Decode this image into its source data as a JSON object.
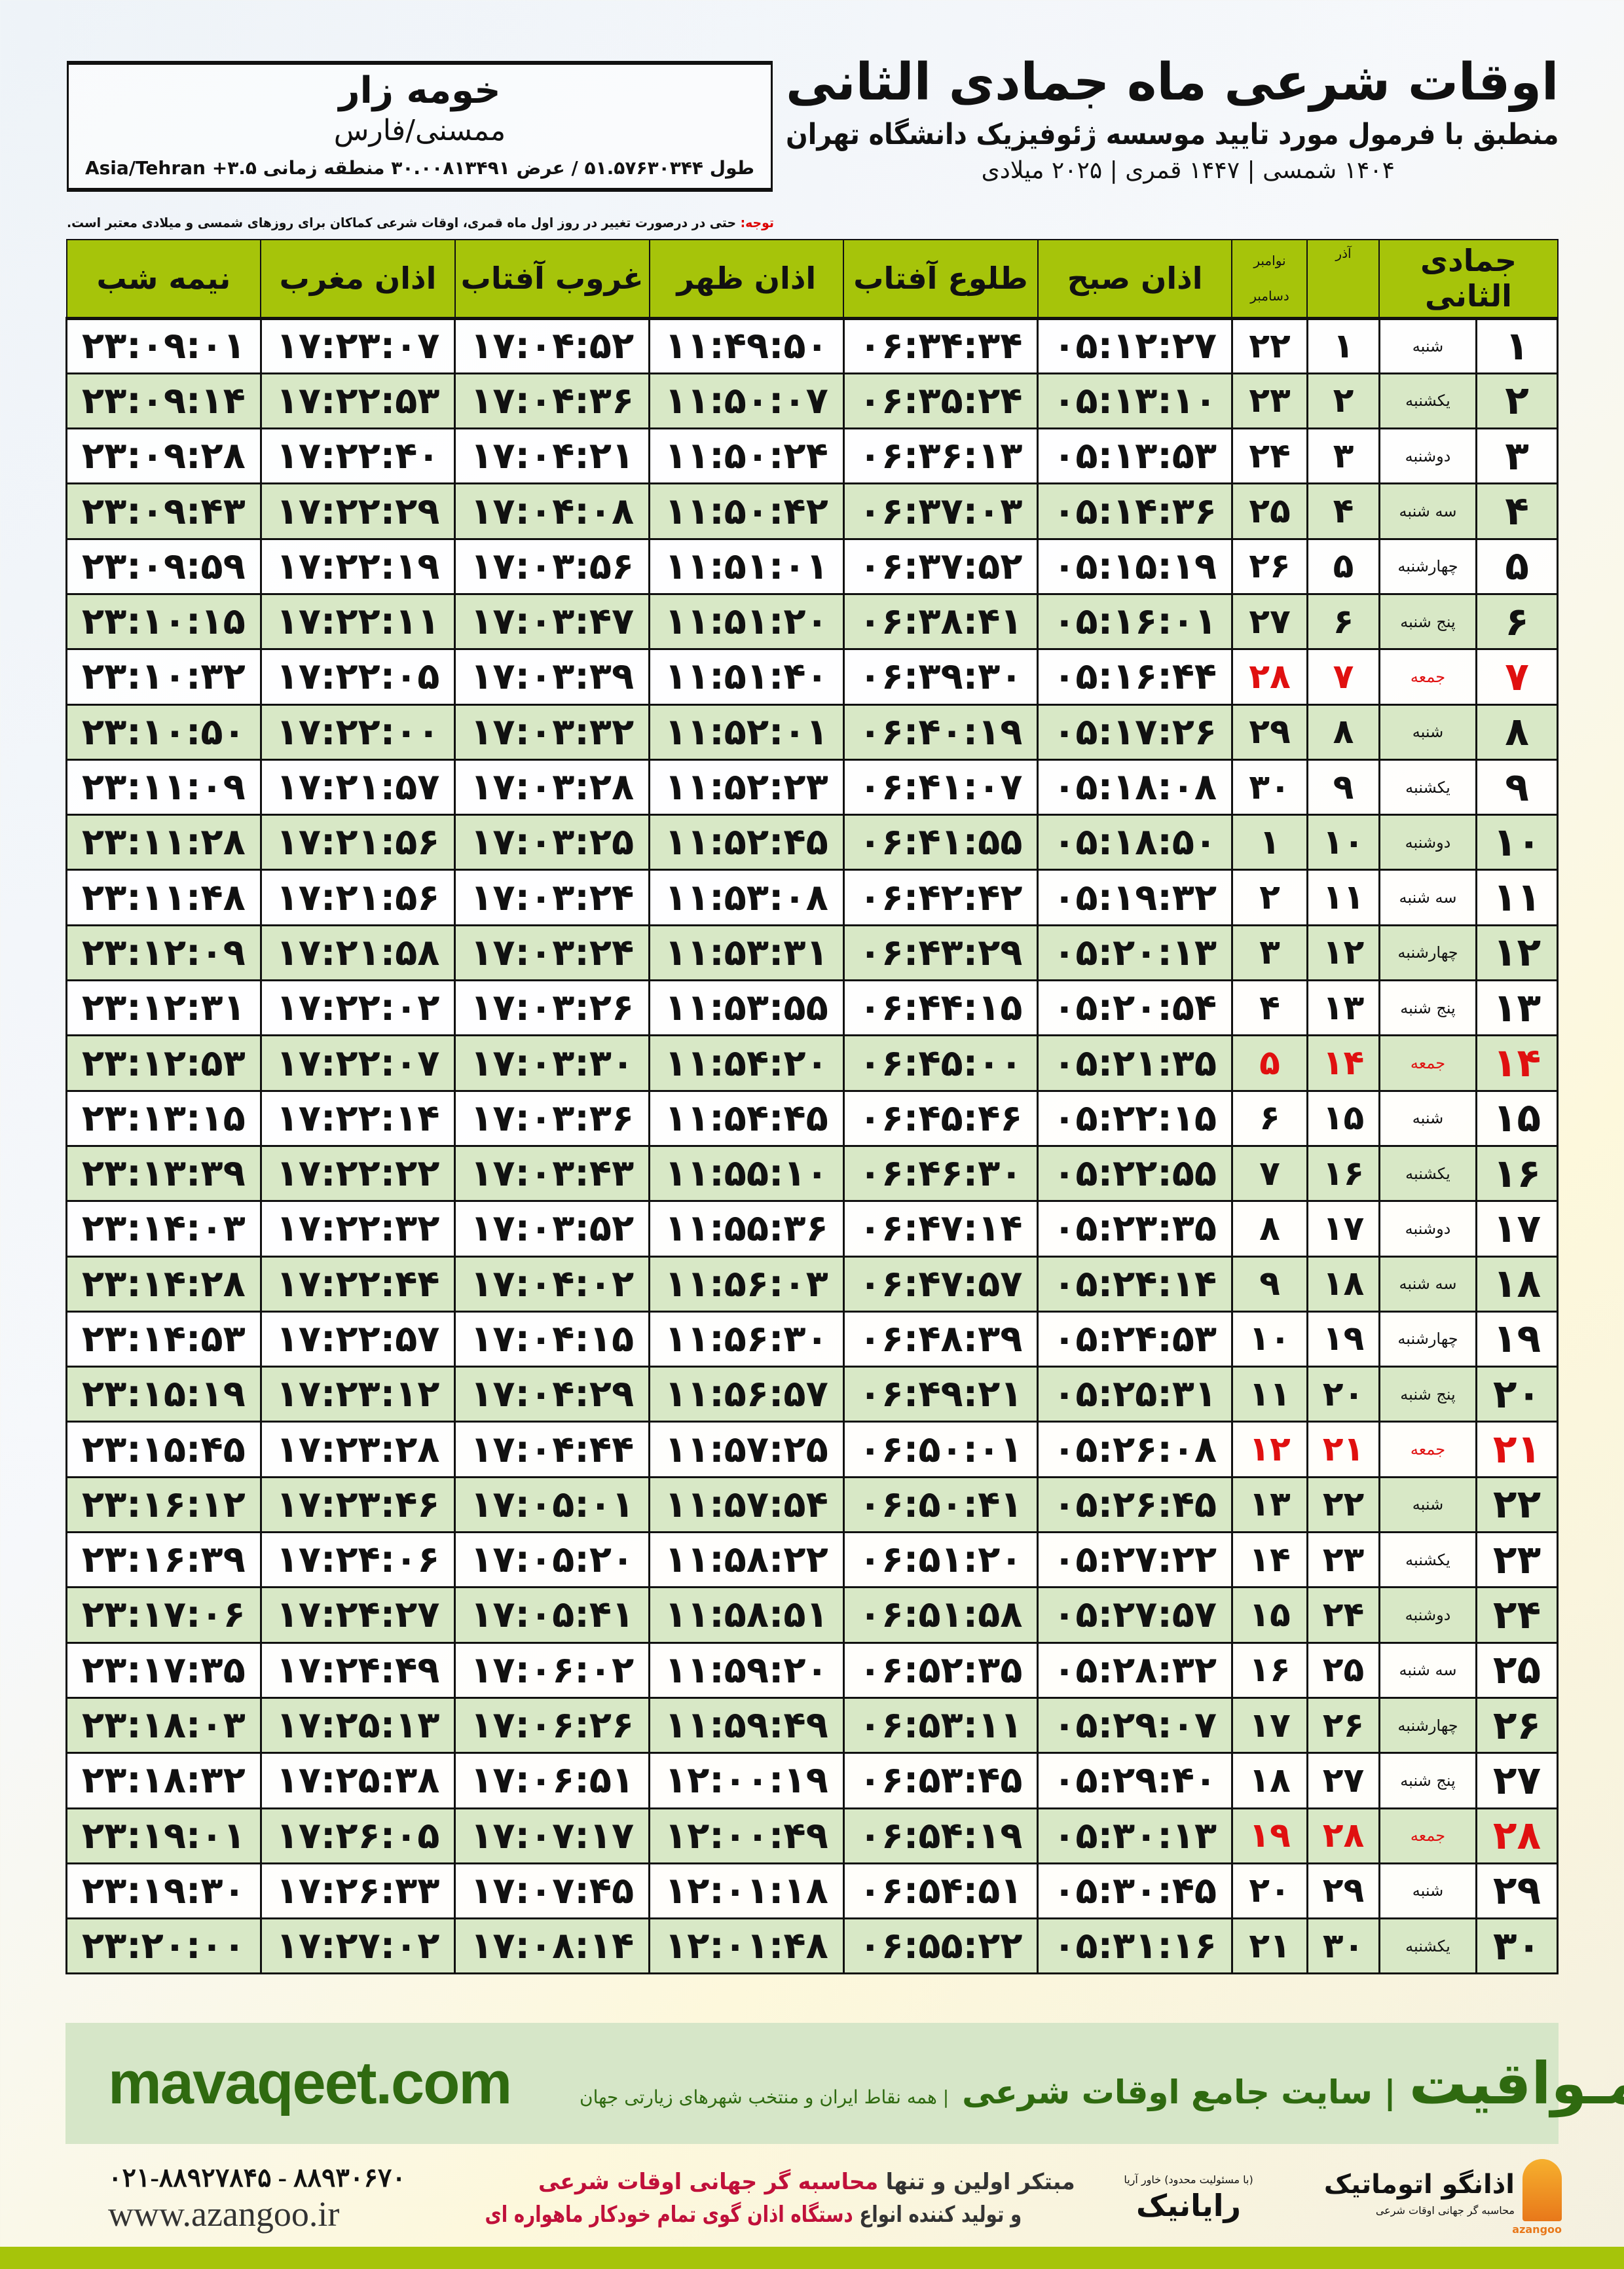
{
  "header": {
    "title": "اوقات شرعی ماه جمادی الثانی",
    "subtitle": "منطبق با فرمول مورد تایید موسسه ژئوفیزیک دانشگاه تهران",
    "dateline": "۱۴۰۴ شمسی | ۱۴۴۷ قمری | ۲۰۲۵ میلادی"
  },
  "location": {
    "city": "خومه زار",
    "province": "ممسنی/فارس",
    "coords": "طول ۵۱.۵۷۶۳۰۳۴۴ / عرض ۳۰.۰۰۸۱۳۴۹۱ منطقه زمانی ۳.۵+ Asia/Tehran"
  },
  "note": {
    "label": "توجه:",
    "text": " حتی در درصورت تغییر در روز اول ماه قمری، اوقات شرعی کماکان برای روزهای شمسی و میلادی معتبر است."
  },
  "table": {
    "headers": {
      "hijri": "جمادی الثانی",
      "azar": "آذر",
      "gregorian_top": "نوامبر",
      "gregorian_bottom": "دسامبر",
      "fajr": "اذان صبح",
      "sunrise": "طلوع آفتاب",
      "dhuhr": "اذان ظهر",
      "sunset": "غروب آفتاب",
      "maghrib": "اذان مغرب",
      "midnight": "نیمه شب"
    },
    "highlight_color": "#e01010",
    "header_color": "#a6c40a",
    "rows": [
      {
        "day": "۱",
        "weekday": "شنبه",
        "azar": "۱",
        "greg": "۲۲",
        "fajr": "۰۵:۱۲:۲۷",
        "sunrise": "۰۶:۳۴:۳۴",
        "dhuhr": "۱۱:۴۹:۵۰",
        "sunset": "۱۷:۰۴:۵۲",
        "maghrib": "۱۷:۲۳:۰۷",
        "midnight": "۲۳:۰۹:۰۱",
        "friday": false
      },
      {
        "day": "۲",
        "weekday": "یکشنبه",
        "azar": "۲",
        "greg": "۲۳",
        "fajr": "۰۵:۱۳:۱۰",
        "sunrise": "۰۶:۳۵:۲۴",
        "dhuhr": "۱۱:۵۰:۰۷",
        "sunset": "۱۷:۰۴:۳۶",
        "maghrib": "۱۷:۲۲:۵۳",
        "midnight": "۲۳:۰۹:۱۴",
        "friday": false
      },
      {
        "day": "۳",
        "weekday": "دوشنبه",
        "azar": "۳",
        "greg": "۲۴",
        "fajr": "۰۵:۱۳:۵۳",
        "sunrise": "۰۶:۳۶:۱۳",
        "dhuhr": "۱۱:۵۰:۲۴",
        "sunset": "۱۷:۰۴:۲۱",
        "maghrib": "۱۷:۲۲:۴۰",
        "midnight": "۲۳:۰۹:۲۸",
        "friday": false
      },
      {
        "day": "۴",
        "weekday": "سه شنبه",
        "azar": "۴",
        "greg": "۲۵",
        "fajr": "۰۵:۱۴:۳۶",
        "sunrise": "۰۶:۳۷:۰۳",
        "dhuhr": "۱۱:۵۰:۴۲",
        "sunset": "۱۷:۰۴:۰۸",
        "maghrib": "۱۷:۲۲:۲۹",
        "midnight": "۲۳:۰۹:۴۳",
        "friday": false
      },
      {
        "day": "۵",
        "weekday": "چهارشنبه",
        "azar": "۵",
        "greg": "۲۶",
        "fajr": "۰۵:۱۵:۱۹",
        "sunrise": "۰۶:۳۷:۵۲",
        "dhuhr": "۱۱:۵۱:۰۱",
        "sunset": "۱۷:۰۳:۵۶",
        "maghrib": "۱۷:۲۲:۱۹",
        "midnight": "۲۳:۰۹:۵۹",
        "friday": false
      },
      {
        "day": "۶",
        "weekday": "پنج شنبه",
        "azar": "۶",
        "greg": "۲۷",
        "fajr": "۰۵:۱۶:۰۱",
        "sunrise": "۰۶:۳۸:۴۱",
        "dhuhr": "۱۱:۵۱:۲۰",
        "sunset": "۱۷:۰۳:۴۷",
        "maghrib": "۱۷:۲۲:۱۱",
        "midnight": "۲۳:۱۰:۱۵",
        "friday": false
      },
      {
        "day": "۷",
        "weekday": "جمعه",
        "azar": "۷",
        "greg": "۲۸",
        "fajr": "۰۵:۱۶:۴۴",
        "sunrise": "۰۶:۳۹:۳۰",
        "dhuhr": "۱۱:۵۱:۴۰",
        "sunset": "۱۷:۰۳:۳۹",
        "maghrib": "۱۷:۲۲:۰۵",
        "midnight": "۲۳:۱۰:۳۲",
        "friday": true
      },
      {
        "day": "۸",
        "weekday": "شنبه",
        "azar": "۸",
        "greg": "۲۹",
        "fajr": "۰۵:۱۷:۲۶",
        "sunrise": "۰۶:۴۰:۱۹",
        "dhuhr": "۱۱:۵۲:۰۱",
        "sunset": "۱۷:۰۳:۳۲",
        "maghrib": "۱۷:۲۲:۰۰",
        "midnight": "۲۳:۱۰:۵۰",
        "friday": false
      },
      {
        "day": "۹",
        "weekday": "یکشنبه",
        "azar": "۹",
        "greg": "۳۰",
        "fajr": "۰۵:۱۸:۰۸",
        "sunrise": "۰۶:۴۱:۰۷",
        "dhuhr": "۱۱:۵۲:۲۳",
        "sunset": "۱۷:۰۳:۲۸",
        "maghrib": "۱۷:۲۱:۵۷",
        "midnight": "۲۳:۱۱:۰۹",
        "friday": false
      },
      {
        "day": "۱۰",
        "weekday": "دوشنبه",
        "azar": "۱۰",
        "greg": "۱",
        "fajr": "۰۵:۱۸:۵۰",
        "sunrise": "۰۶:۴۱:۵۵",
        "dhuhr": "۱۱:۵۲:۴۵",
        "sunset": "۱۷:۰۳:۲۵",
        "maghrib": "۱۷:۲۱:۵۶",
        "midnight": "۲۳:۱۱:۲۸",
        "friday": false
      },
      {
        "day": "۱۱",
        "weekday": "سه شنبه",
        "azar": "۱۱",
        "greg": "۲",
        "fajr": "۰۵:۱۹:۳۲",
        "sunrise": "۰۶:۴۲:۴۲",
        "dhuhr": "۱۱:۵۳:۰۸",
        "sunset": "۱۷:۰۳:۲۴",
        "maghrib": "۱۷:۲۱:۵۶",
        "midnight": "۲۳:۱۱:۴۸",
        "friday": false
      },
      {
        "day": "۱۲",
        "weekday": "چهارشنبه",
        "azar": "۱۲",
        "greg": "۳",
        "fajr": "۰۵:۲۰:۱۳",
        "sunrise": "۰۶:۴۳:۲۹",
        "dhuhr": "۱۱:۵۳:۳۱",
        "sunset": "۱۷:۰۳:۲۴",
        "maghrib": "۱۷:۲۱:۵۸",
        "midnight": "۲۳:۱۲:۰۹",
        "friday": false
      },
      {
        "day": "۱۳",
        "weekday": "پنج شنبه",
        "azar": "۱۳",
        "greg": "۴",
        "fajr": "۰۵:۲۰:۵۴",
        "sunrise": "۰۶:۴۴:۱۵",
        "dhuhr": "۱۱:۵۳:۵۵",
        "sunset": "۱۷:۰۳:۲۶",
        "maghrib": "۱۷:۲۲:۰۲",
        "midnight": "۲۳:۱۲:۳۱",
        "friday": false
      },
      {
        "day": "۱۴",
        "weekday": "جمعه",
        "azar": "۱۴",
        "greg": "۵",
        "fajr": "۰۵:۲۱:۳۵",
        "sunrise": "۰۶:۴۵:۰۰",
        "dhuhr": "۱۱:۵۴:۲۰",
        "sunset": "۱۷:۰۳:۳۰",
        "maghrib": "۱۷:۲۲:۰۷",
        "midnight": "۲۳:۱۲:۵۳",
        "friday": true
      },
      {
        "day": "۱۵",
        "weekday": "شنبه",
        "azar": "۱۵",
        "greg": "۶",
        "fajr": "۰۵:۲۲:۱۵",
        "sunrise": "۰۶:۴۵:۴۶",
        "dhuhr": "۱۱:۵۴:۴۵",
        "sunset": "۱۷:۰۳:۳۶",
        "maghrib": "۱۷:۲۲:۱۴",
        "midnight": "۲۳:۱۳:۱۵",
        "friday": false
      },
      {
        "day": "۱۶",
        "weekday": "یکشنبه",
        "azar": "۱۶",
        "greg": "۷",
        "fajr": "۰۵:۲۲:۵۵",
        "sunrise": "۰۶:۴۶:۳۰",
        "dhuhr": "۱۱:۵۵:۱۰",
        "sunset": "۱۷:۰۳:۴۳",
        "maghrib": "۱۷:۲۲:۲۲",
        "midnight": "۲۳:۱۳:۳۹",
        "friday": false
      },
      {
        "day": "۱۷",
        "weekday": "دوشنبه",
        "azar": "۱۷",
        "greg": "۸",
        "fajr": "۰۵:۲۳:۳۵",
        "sunrise": "۰۶:۴۷:۱۴",
        "dhuhr": "۱۱:۵۵:۳۶",
        "sunset": "۱۷:۰۳:۵۲",
        "maghrib": "۱۷:۲۲:۳۲",
        "midnight": "۲۳:۱۴:۰۳",
        "friday": false
      },
      {
        "day": "۱۸",
        "weekday": "سه شنبه",
        "azar": "۱۸",
        "greg": "۹",
        "fajr": "۰۵:۲۴:۱۴",
        "sunrise": "۰۶:۴۷:۵۷",
        "dhuhr": "۱۱:۵۶:۰۳",
        "sunset": "۱۷:۰۴:۰۲",
        "maghrib": "۱۷:۲۲:۴۴",
        "midnight": "۲۳:۱۴:۲۸",
        "friday": false
      },
      {
        "day": "۱۹",
        "weekday": "چهارشنبه",
        "azar": "۱۹",
        "greg": "۱۰",
        "fajr": "۰۵:۲۴:۵۳",
        "sunrise": "۰۶:۴۸:۳۹",
        "dhuhr": "۱۱:۵۶:۳۰",
        "sunset": "۱۷:۰۴:۱۵",
        "maghrib": "۱۷:۲۲:۵۷",
        "midnight": "۲۳:۱۴:۵۳",
        "friday": false
      },
      {
        "day": "۲۰",
        "weekday": "پنج شنبه",
        "azar": "۲۰",
        "greg": "۱۱",
        "fajr": "۰۵:۲۵:۳۱",
        "sunrise": "۰۶:۴۹:۲۱",
        "dhuhr": "۱۱:۵۶:۵۷",
        "sunset": "۱۷:۰۴:۲۹",
        "maghrib": "۱۷:۲۳:۱۲",
        "midnight": "۲۳:۱۵:۱۹",
        "friday": false
      },
      {
        "day": "۲۱",
        "weekday": "جمعه",
        "azar": "۲۱",
        "greg": "۱۲",
        "fajr": "۰۵:۲۶:۰۸",
        "sunrise": "۰۶:۵۰:۰۱",
        "dhuhr": "۱۱:۵۷:۲۵",
        "sunset": "۱۷:۰۴:۴۴",
        "maghrib": "۱۷:۲۳:۲۸",
        "midnight": "۲۳:۱۵:۴۵",
        "friday": true
      },
      {
        "day": "۲۲",
        "weekday": "شنبه",
        "azar": "۲۲",
        "greg": "۱۳",
        "fajr": "۰۵:۲۶:۴۵",
        "sunrise": "۰۶:۵۰:۴۱",
        "dhuhr": "۱۱:۵۷:۵۴",
        "sunset": "۱۷:۰۵:۰۱",
        "maghrib": "۱۷:۲۳:۴۶",
        "midnight": "۲۳:۱۶:۱۲",
        "friday": false
      },
      {
        "day": "۲۳",
        "weekday": "یکشنبه",
        "azar": "۲۳",
        "greg": "۱۴",
        "fajr": "۰۵:۲۷:۲۲",
        "sunrise": "۰۶:۵۱:۲۰",
        "dhuhr": "۱۱:۵۸:۲۲",
        "sunset": "۱۷:۰۵:۲۰",
        "maghrib": "۱۷:۲۴:۰۶",
        "midnight": "۲۳:۱۶:۳۹",
        "friday": false
      },
      {
        "day": "۲۴",
        "weekday": "دوشنبه",
        "azar": "۲۴",
        "greg": "۱۵",
        "fajr": "۰۵:۲۷:۵۷",
        "sunrise": "۰۶:۵۱:۵۸",
        "dhuhr": "۱۱:۵۸:۵۱",
        "sunset": "۱۷:۰۵:۴۱",
        "maghrib": "۱۷:۲۴:۲۷",
        "midnight": "۲۳:۱۷:۰۶",
        "friday": false
      },
      {
        "day": "۲۵",
        "weekday": "سه شنبه",
        "azar": "۲۵",
        "greg": "۱۶",
        "fajr": "۰۵:۲۸:۳۲",
        "sunrise": "۰۶:۵۲:۳۵",
        "dhuhr": "۱۱:۵۹:۲۰",
        "sunset": "۱۷:۰۶:۰۲",
        "maghrib": "۱۷:۲۴:۴۹",
        "midnight": "۲۳:۱۷:۳۵",
        "friday": false
      },
      {
        "day": "۲۶",
        "weekday": "چهارشنبه",
        "azar": "۲۶",
        "greg": "۱۷",
        "fajr": "۰۵:۲۹:۰۷",
        "sunrise": "۰۶:۵۳:۱۱",
        "dhuhr": "۱۱:۵۹:۴۹",
        "sunset": "۱۷:۰۶:۲۶",
        "maghrib": "۱۷:۲۵:۱۳",
        "midnight": "۲۳:۱۸:۰۳",
        "friday": false
      },
      {
        "day": "۲۷",
        "weekday": "پنج شنبه",
        "azar": "۲۷",
        "greg": "۱۸",
        "fajr": "۰۵:۲۹:۴۰",
        "sunrise": "۰۶:۵۳:۴۵",
        "dhuhr": "۱۲:۰۰:۱۹",
        "sunset": "۱۷:۰۶:۵۱",
        "maghrib": "۱۷:۲۵:۳۸",
        "midnight": "۲۳:۱۸:۳۲",
        "friday": false
      },
      {
        "day": "۲۸",
        "weekday": "جمعه",
        "azar": "۲۸",
        "greg": "۱۹",
        "fajr": "۰۵:۳۰:۱۳",
        "sunrise": "۰۶:۵۴:۱۹",
        "dhuhr": "۱۲:۰۰:۴۹",
        "sunset": "۱۷:۰۷:۱۷",
        "maghrib": "۱۷:۲۶:۰۵",
        "midnight": "۲۳:۱۹:۰۱",
        "friday": true
      },
      {
        "day": "۲۹",
        "weekday": "شنبه",
        "azar": "۲۹",
        "greg": "۲۰",
        "fajr": "۰۵:۳۰:۴۵",
        "sunrise": "۰۶:۵۴:۵۱",
        "dhuhr": "۱۲:۰۱:۱۸",
        "sunset": "۱۷:۰۷:۴۵",
        "maghrib": "۱۷:۲۶:۳۳",
        "midnight": "۲۳:۱۹:۳۰",
        "friday": false
      },
      {
        "day": "۳۰",
        "weekday": "یکشنبه",
        "azar": "۳۰",
        "greg": "۲۱",
        "fajr": "۰۵:۳۱:۱۶",
        "sunrise": "۰۶:۵۵:۲۲",
        "dhuhr": "۱۲:۰۱:۴۸",
        "sunset": "۱۷:۰۸:۱۴",
        "maghrib": "۱۷:۲۷:۰۲",
        "midnight": "۲۳:۲۰:۰۰",
        "friday": false
      }
    ]
  },
  "banner": {
    "brand": "مـواقیت",
    "tagline": "| سایت جامع اوقات شرعی",
    "tagline2": "| همه نقاط ایران و منتخب شهرهای زیارتی جهان",
    "site": "mavaqeet.com",
    "color": "#2f6a10"
  },
  "footer": {
    "phone": "۰۲۱-۸۸۹۲۷۸۴۵ - ۸۸۹۳۰۶۷۰",
    "website": "www.azangoo.ir",
    "slogan_1a": "مبتکر اولین و تنها ",
    "slogan_1b": "محاسبه گر جهانی اوقات شرعی",
    "slogan_2a": "و تولید کننده انواع ",
    "slogan_2b": "دستگاه اذان گوی تمام خودکار ماهواره ای",
    "logo_rayanik": "رایانیک",
    "logo_rayanik_sub": "(با مسئولیت محدود) خاور آریا",
    "logo_azangoo": "اذانگو اتوماتیک",
    "logo_azangoo_sub": "محاسبه گر جهانی اوقات شرعی",
    "logo_azangoo_en": "azangoo"
  }
}
